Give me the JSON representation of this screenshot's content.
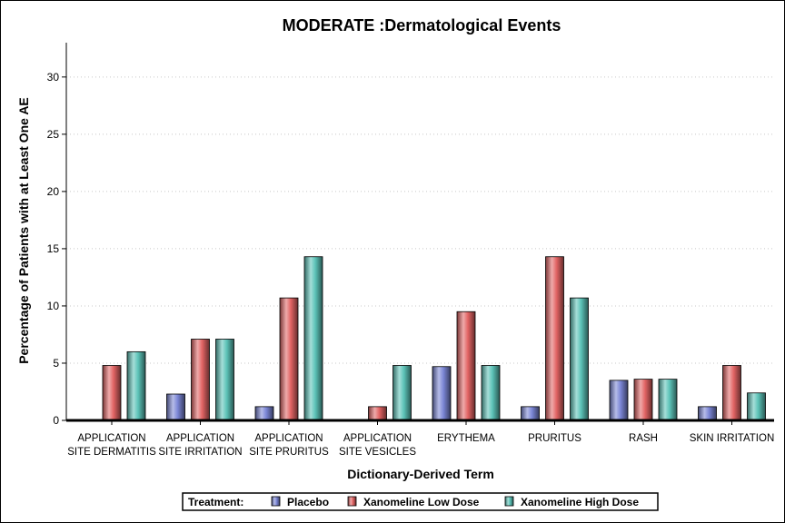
{
  "chart_data": {
    "type": "bar",
    "title": "MODERATE :Dermatological Events",
    "xlabel": "Dictionary-Derived Term",
    "ylabel": "Percentage of Patients with at Least One AE",
    "ylim": [
      0,
      33
    ],
    "yticks": [
      0,
      5,
      10,
      15,
      20,
      25,
      30
    ],
    "grid": true,
    "categories": [
      [
        "APPLICATION",
        "SITE DERMATITIS"
      ],
      [
        "APPLICATION",
        "SITE IRRITATION"
      ],
      [
        "APPLICATION",
        "SITE PRURITUS"
      ],
      [
        "APPLICATION",
        "SITE VESICLES"
      ],
      [
        "ERYTHEMA"
      ],
      [
        "PRURITUS"
      ],
      [
        "RASH"
      ],
      [
        "SKIN IRRITATION"
      ]
    ],
    "legend": {
      "title": "Treatment:",
      "placement": "bottom"
    },
    "series": [
      {
        "name": "Placebo",
        "color": "#7b86d6",
        "values": [
          0,
          2.3,
          1.2,
          0,
          4.7,
          1.2,
          3.5,
          1.2
        ]
      },
      {
        "name": "Xanomeline Low Dose",
        "color": "#e26464",
        "values": [
          4.8,
          7.1,
          10.7,
          1.2,
          9.5,
          14.3,
          3.6,
          4.8
        ]
      },
      {
        "name": "Xanomeline High Dose",
        "color": "#5cc3b8",
        "values": [
          6.0,
          7.1,
          14.3,
          4.8,
          4.8,
          10.7,
          3.6,
          2.4
        ]
      }
    ]
  }
}
